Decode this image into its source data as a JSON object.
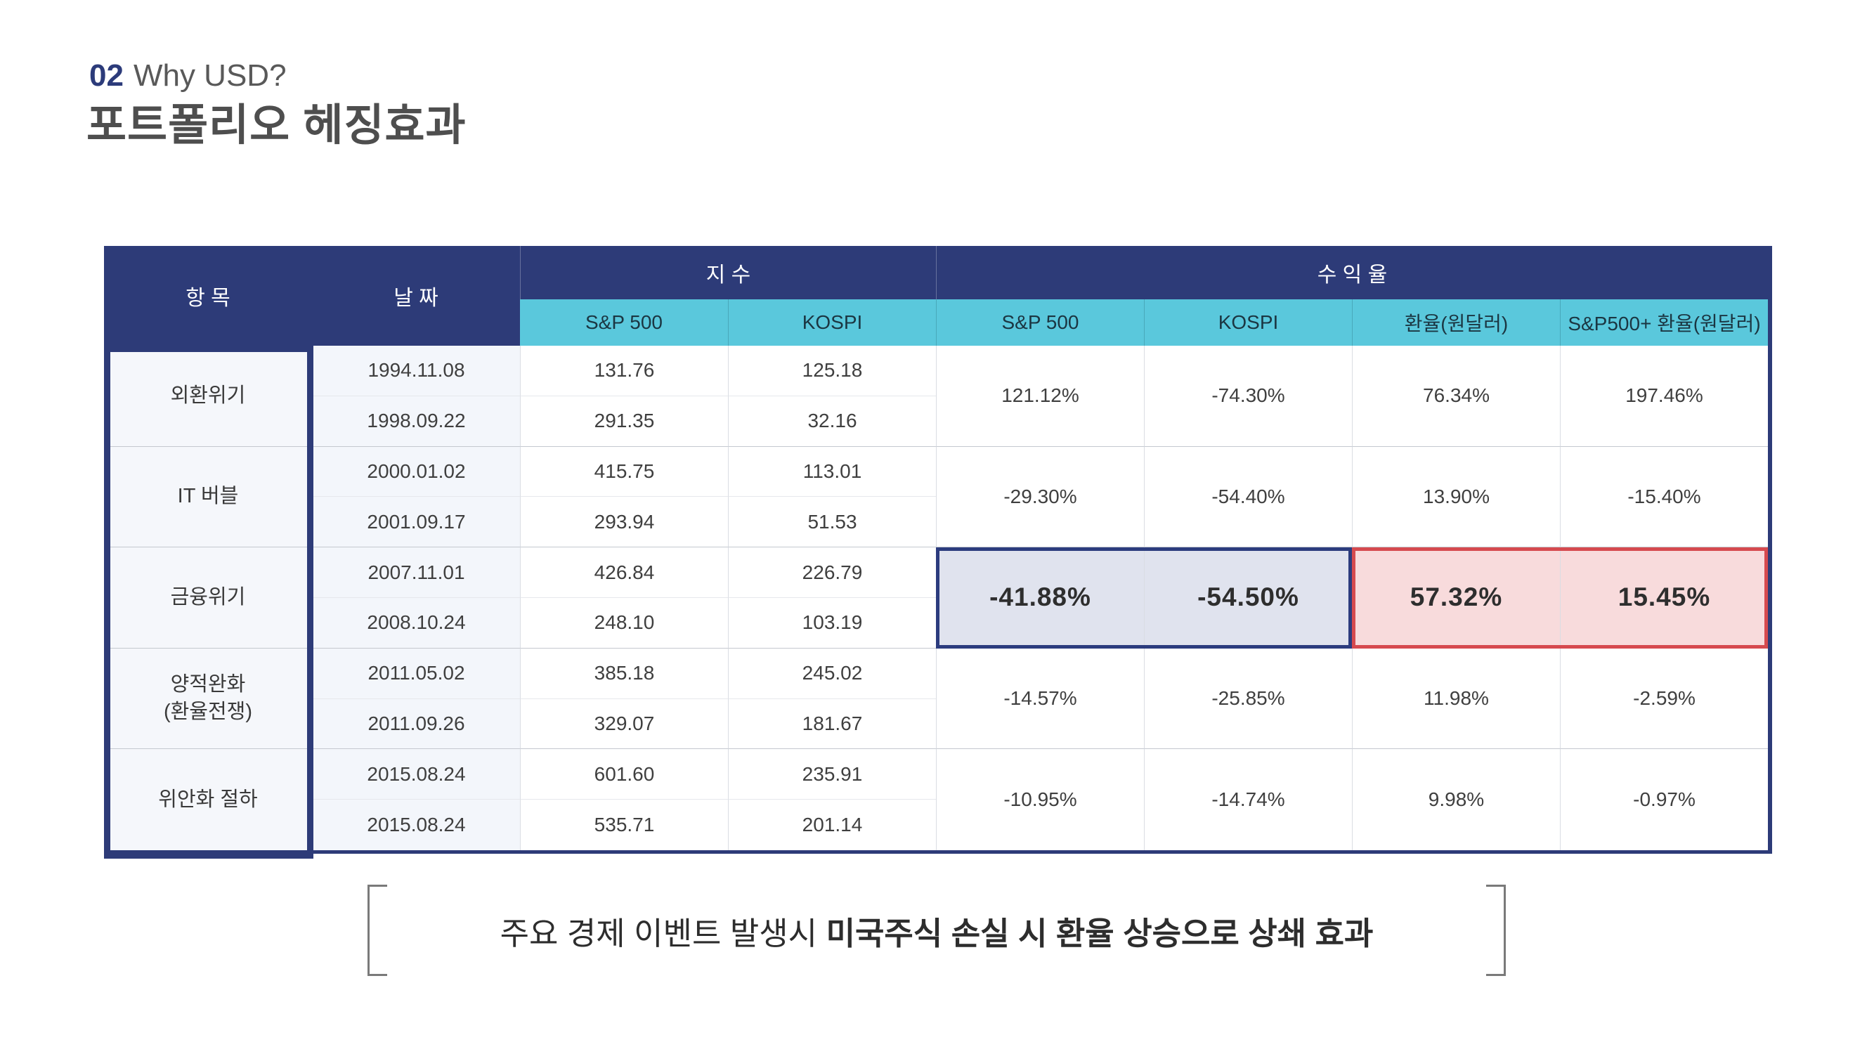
{
  "header": {
    "section_number": "02",
    "section_title": "Why USD?",
    "page_title": "포트폴리오 헤징효과"
  },
  "table": {
    "columns": {
      "item": "항 목",
      "date": "날 짜",
      "group_index": "지 수",
      "group_return": "수 익 율",
      "index_sub": [
        "S&P 500",
        "KOSPI"
      ],
      "return_sub": [
        "S&P 500",
        "KOSPI",
        "환율(원달러)",
        "S&P500+ 환율(원달러)"
      ]
    },
    "groups": [
      {
        "item": "외환위기",
        "rows": [
          {
            "date": "1994.11.08",
            "sp500": "131.76",
            "kospi": "125.18"
          },
          {
            "date": "1998.09.22",
            "sp500": "291.35",
            "kospi": "32.16"
          }
        ],
        "returns": {
          "sp500": "121.12%",
          "kospi": "-74.30%",
          "fx": "76.34%",
          "sp500_fx": "197.46%"
        },
        "highlight": false
      },
      {
        "item": "IT 버블",
        "rows": [
          {
            "date": "2000.01.02",
            "sp500": "415.75",
            "kospi": "113.01"
          },
          {
            "date": "2001.09.17",
            "sp500": "293.94",
            "kospi": "51.53"
          }
        ],
        "returns": {
          "sp500": "-29.30%",
          "kospi": "-54.40%",
          "fx": "13.90%",
          "sp500_fx": "-15.40%"
        },
        "highlight": false
      },
      {
        "item": "금융위기",
        "rows": [
          {
            "date": "2007.11.01",
            "sp500": "426.84",
            "kospi": "226.79"
          },
          {
            "date": "2008.10.24",
            "sp500": "248.10",
            "kospi": "103.19"
          }
        ],
        "returns": {
          "sp500": "-41.88%",
          "kospi": "-54.50%",
          "fx": "57.32%",
          "sp500_fx": "15.45%"
        },
        "highlight": true
      },
      {
        "item": "양적완화\n(환율전쟁)",
        "rows": [
          {
            "date": "2011.05.02",
            "sp500": "385.18",
            "kospi": "245.02"
          },
          {
            "date": "2011.09.26",
            "sp500": "329.07",
            "kospi": "181.67"
          }
        ],
        "returns": {
          "sp500": "-14.57%",
          "kospi": "-25.85%",
          "fx": "11.98%",
          "sp500_fx": "-2.59%"
        },
        "highlight": false
      },
      {
        "item": "위안화 절하",
        "rows": [
          {
            "date": "2015.08.24",
            "sp500": "601.60",
            "kospi": "235.91"
          },
          {
            "date": "2015.08.24",
            "sp500": "535.71",
            "kospi": "201.14"
          }
        ],
        "returns": {
          "sp500": "-10.95%",
          "kospi": "-14.74%",
          "fx": "9.98%",
          "sp500_fx": "-0.97%"
        },
        "highlight": false
      }
    ]
  },
  "caption": {
    "normal": "주요 경제 이벤트 발생시 ",
    "bold": "미국주식 손실 시 환율 상승으로 상쇄 효과"
  },
  "colors": {
    "navy": "#2d3b78",
    "cyan": "#5ac8dc",
    "highlight_blue_bg": "#e0e3ee",
    "highlight_blue_border": "#2c3c7e",
    "highlight_pink_bg": "#f8dbdc",
    "highlight_pink_border": "#d64a4f"
  }
}
